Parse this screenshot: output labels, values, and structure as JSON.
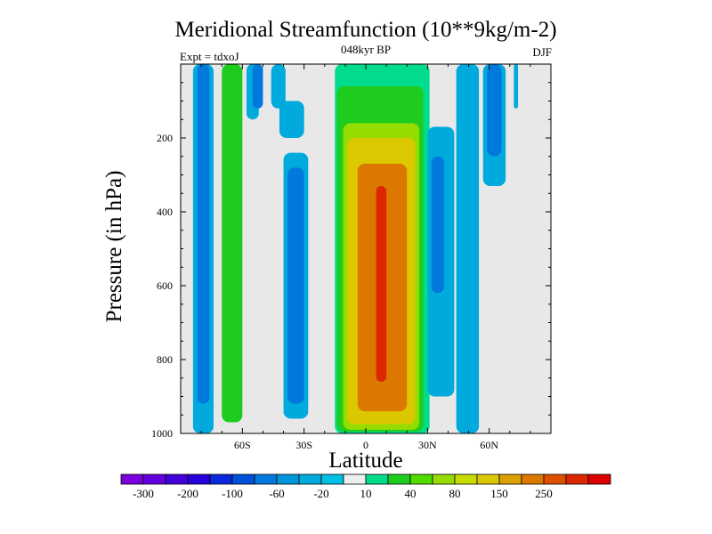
{
  "chart_data": {
    "type": "heatmap",
    "title": "Meridional Streamfunction (10**9kg/m-2)",
    "subtitle": "048kyr BP",
    "left_annotation": "Expt = tdxoJ",
    "right_annotation": "DJF",
    "xlabel": "Latitude",
    "ylabel": "Pressure (in hPa)",
    "x_ticks": [
      {
        "value": -60,
        "label": "60S"
      },
      {
        "value": -30,
        "label": "30S"
      },
      {
        "value": 0,
        "label": "0"
      },
      {
        "value": 30,
        "label": "30N"
      },
      {
        "value": 60,
        "label": "60N"
      }
    ],
    "y_ticks": [
      {
        "value": 200,
        "label": "200"
      },
      {
        "value": 400,
        "label": "400"
      },
      {
        "value": 600,
        "label": "600"
      },
      {
        "value": 800,
        "label": "800"
      },
      {
        "value": 1000,
        "label": "1000"
      }
    ],
    "xlim": [
      -90,
      90
    ],
    "ylim": [
      1000,
      0
    ],
    "background_color": "#e8e8e8",
    "colorbar": {
      "colors": [
        "#7a00dc",
        "#6400e0",
        "#4400d8",
        "#2800dc",
        "#0a28dc",
        "#0050dc",
        "#0078dc",
        "#0096dc",
        "#00aadc",
        "#00c0e4",
        "#eeeeee",
        "#00dc8c",
        "#1ecc1e",
        "#50dc00",
        "#96dc00",
        "#c8dc00",
        "#dcc800",
        "#dca000",
        "#dc7800",
        "#dc5000",
        "#dc2800",
        "#dc0000"
      ],
      "labels": [
        {
          "after_box": 0,
          "text": "-300"
        },
        {
          "after_box": 2,
          "text": "-200"
        },
        {
          "after_box": 4,
          "text": "-100"
        },
        {
          "after_box": 6,
          "text": "-60"
        },
        {
          "after_box": 8,
          "text": "-20"
        },
        {
          "after_box": 10,
          "text": "10"
        },
        {
          "after_box": 12,
          "text": "40"
        },
        {
          "after_box": 14,
          "text": "80"
        },
        {
          "after_box": 16,
          "text": "150"
        },
        {
          "after_box": 18,
          "text": "250"
        }
      ]
    },
    "cells": [
      {
        "x0": -84,
        "x1": -74,
        "p0": 0,
        "p1": 1000,
        "v": -20
      },
      {
        "x0": -82,
        "x1": -76,
        "p0": 0,
        "p1": 920,
        "v": -60
      },
      {
        "x0": -70,
        "x1": -60,
        "p0": 0,
        "p1": 970,
        "v": 40
      },
      {
        "x0": -68,
        "x1": -62,
        "p0": 50,
        "p1": 940,
        "v": 40
      },
      {
        "x0": -58,
        "x1": -52,
        "p0": 0,
        "p1": 150,
        "v": -20
      },
      {
        "x0": -55,
        "x1": -50,
        "p0": 0,
        "p1": 120,
        "v": -60
      },
      {
        "x0": -46,
        "x1": -39,
        "p0": 0,
        "p1": 120,
        "v": -20
      },
      {
        "x0": -42,
        "x1": -30,
        "p0": 100,
        "p1": 200,
        "v": -20
      },
      {
        "x0": -40,
        "x1": -28,
        "p0": 240,
        "p1": 960,
        "v": -20
      },
      {
        "x0": -38,
        "x1": -30,
        "p0": 280,
        "p1": 920,
        "v": -60
      },
      {
        "x0": -2,
        "x1": 4,
        "p0": 0,
        "p1": 70,
        "v": -20
      },
      {
        "x0": -15,
        "x1": 31,
        "p0": 0,
        "p1": 1000,
        "v": 10
      },
      {
        "x0": -14,
        "x1": 28,
        "p0": 60,
        "p1": 995,
        "v": 40
      },
      {
        "x0": -11,
        "x1": 26,
        "p0": 160,
        "p1": 990,
        "v": 80
      },
      {
        "x0": -9,
        "x1": 24,
        "p0": 200,
        "p1": 975,
        "v": 150
      },
      {
        "x0": -7,
        "x1": 22,
        "p0": 240,
        "p1": 960,
        "v": 150
      },
      {
        "x0": -4,
        "x1": 20,
        "p0": 270,
        "p1": 940,
        "v": 250
      },
      {
        "x0": -2,
        "x1": 18,
        "p0": 290,
        "p1": 910,
        "v": 250
      },
      {
        "x0": 5,
        "x1": 10,
        "p0": 330,
        "p1": 860,
        "v": 300
      },
      {
        "x0": 30,
        "x1": 43,
        "p0": 170,
        "p1": 900,
        "v": -20
      },
      {
        "x0": 32,
        "x1": 38,
        "p0": 250,
        "p1": 620,
        "v": -60
      },
      {
        "x0": 44,
        "x1": 55,
        "p0": 0,
        "p1": 1000,
        "v": -20
      },
      {
        "x0": 57,
        "x1": 68,
        "p0": 0,
        "p1": 330,
        "v": -20
      },
      {
        "x0": 59,
        "x1": 66,
        "p0": 0,
        "p1": 250,
        "v": -60
      },
      {
        "x0": 72,
        "x1": 74,
        "p0": 0,
        "p1": 120,
        "v": -20
      }
    ]
  }
}
